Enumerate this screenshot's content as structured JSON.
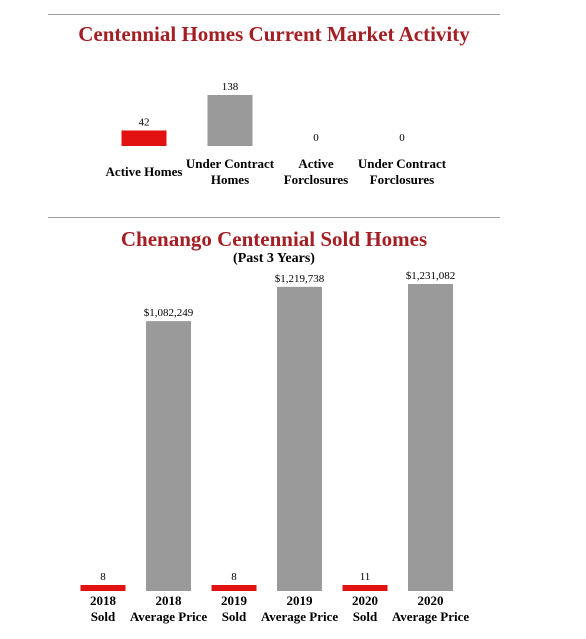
{
  "colors": {
    "red": "#e31212",
    "gray": "#9a9a9a",
    "title": "#a31f24"
  },
  "chart_data": [
    {
      "type": "bar",
      "title": "Centennial Homes Current Market Activity",
      "categories": [
        [
          "Active Homes"
        ],
        [
          "Under Contract",
          "Homes"
        ],
        [
          "Active",
          "Forclosures"
        ],
        [
          "Under Contract",
          "Forclosures"
        ]
      ],
      "values": [
        42,
        138,
        0,
        0
      ],
      "value_labels": [
        "42",
        "138",
        "0",
        "0"
      ],
      "bar_colors": [
        "#e31212",
        "#9a9a9a",
        "#9a9a9a",
        "#9a9a9a"
      ]
    },
    {
      "type": "bar",
      "title": "Chenango Centennial Sold Homes",
      "subtitle": "(Past 3 Years)",
      "categories": [
        [
          "2018",
          "Sold"
        ],
        [
          "2018",
          "Average Price"
        ],
        [
          "2019",
          "Sold"
        ],
        [
          "2019",
          "Average Price"
        ],
        [
          "2020",
          "Sold"
        ],
        [
          "2020",
          "Average Price"
        ]
      ],
      "values": [
        8,
        1082249,
        8,
        1219738,
        11,
        1231082
      ],
      "value_labels": [
        "8",
        "$1,082,249",
        "8",
        "$1,219,738",
        "11",
        "$1,231,082"
      ],
      "bar_colors": [
        "#e31212",
        "#9a9a9a",
        "#e31212",
        "#9a9a9a",
        "#e31212",
        "#9a9a9a"
      ]
    }
  ]
}
